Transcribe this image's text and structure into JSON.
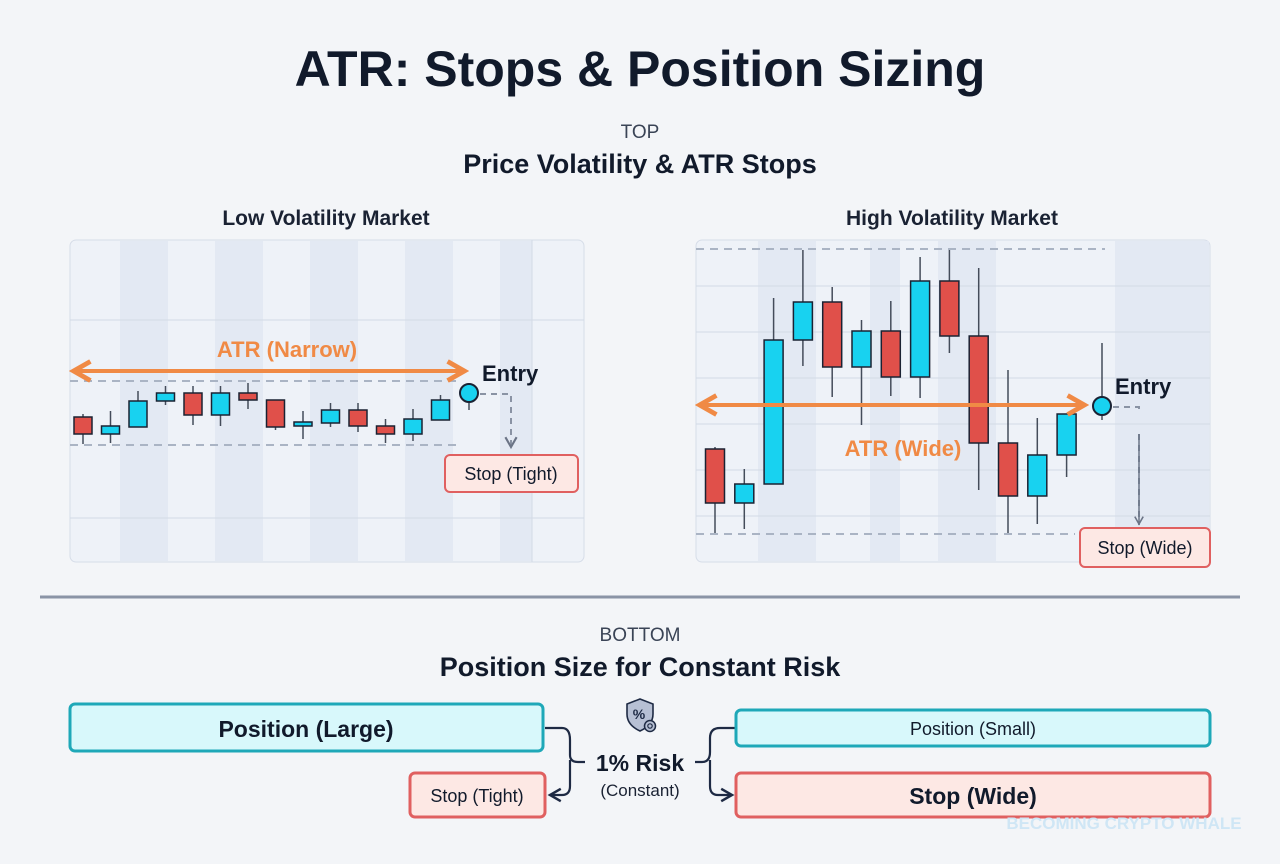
{
  "title": "ATR: Stops & Position Sizing",
  "top": {
    "section_label": "TOP",
    "heading": "Price Volatility & ATR Stops",
    "low_vol": {
      "title": "Low Volatility Market",
      "atr_label": "ATR (Narrow)",
      "entry_label": "Entry",
      "stop_label": "Stop (Tight)",
      "candles": [
        {
          "o": 183,
          "c": 166,
          "h": 186,
          "l": 156
        },
        {
          "o": 166,
          "c": 174,
          "h": 189,
          "l": 157
        },
        {
          "o": 173,
          "c": 199,
          "h": 209,
          "l": 173
        },
        {
          "o": 199,
          "c": 207,
          "h": 214,
          "l": 195
        },
        {
          "o": 207,
          "c": 185,
          "h": 214,
          "l": 175
        },
        {
          "o": 185,
          "c": 207,
          "h": 214,
          "l": 174
        },
        {
          "o": 207,
          "c": 200,
          "h": 217,
          "l": 191
        },
        {
          "o": 200,
          "c": 173,
          "h": 200,
          "l": 170
        },
        {
          "o": 174,
          "c": 178,
          "h": 189,
          "l": 161
        },
        {
          "o": 177,
          "c": 190,
          "h": 197,
          "l": 173
        },
        {
          "o": 190,
          "c": 174,
          "h": 197,
          "l": 168
        },
        {
          "o": 174,
          "c": 166,
          "h": 181,
          "l": 157
        },
        {
          "o": 166,
          "c": 181,
          "h": 191,
          "l": 159
        },
        {
          "o": 180,
          "c": 200,
          "h": 205,
          "l": 180
        }
      ],
      "entry_price": 207,
      "band": [
        219,
        155
      ]
    },
    "high_vol": {
      "title": "High Volatility Market",
      "atr_label": "ATR (Wide)",
      "entry_label": "Entry",
      "stop_label": "Stop (Wide)",
      "candles": [
        {
          "o": 151,
          "c": 97,
          "h": 153,
          "l": 67
        },
        {
          "o": 97,
          "c": 116,
          "h": 131,
          "l": 71
        },
        {
          "o": 116,
          "c": 260,
          "h": 302,
          "l": 116
        },
        {
          "o": 260,
          "c": 298,
          "h": 350,
          "l": 234
        },
        {
          "o": 298,
          "c": 233,
          "h": 313,
          "l": 203
        },
        {
          "o": 233,
          "c": 269,
          "h": 280,
          "l": 175
        },
        {
          "o": 269,
          "c": 223,
          "h": 299,
          "l": 204
        },
        {
          "o": 223,
          "c": 319,
          "h": 343,
          "l": 202
        },
        {
          "o": 319,
          "c": 264,
          "h": 350,
          "l": 247
        },
        {
          "o": 264,
          "c": 157,
          "h": 332,
          "l": 110
        },
        {
          "o": 157,
          "c": 104,
          "h": 230,
          "l": 66
        },
        {
          "o": 104,
          "c": 145,
          "h": 182,
          "l": 76
        },
        {
          "o": 145,
          "c": 186,
          "h": 186,
          "l": 123
        }
      ],
      "entry_price": 194,
      "band": [
        351,
        66
      ]
    }
  },
  "bottom": {
    "section_label": "BOTTOM",
    "heading": "Position Size for Constant Risk",
    "left": {
      "position": "Position (Large)",
      "stop": "Stop (Tight)"
    },
    "center": {
      "risk": "1% Risk",
      "note": "(Constant)",
      "icon": "shield-percent-icon"
    },
    "right": {
      "position": "Position (Small)",
      "stop": "Stop (Wide)"
    }
  },
  "watermark": "BECOMING CRYPTO WHALE",
  "colors": {
    "bull": "#18d2f0",
    "bear": "#e0504a",
    "atr": "#f08a45",
    "position_border": "#1ea8b8",
    "stop_border": "#e06060"
  }
}
